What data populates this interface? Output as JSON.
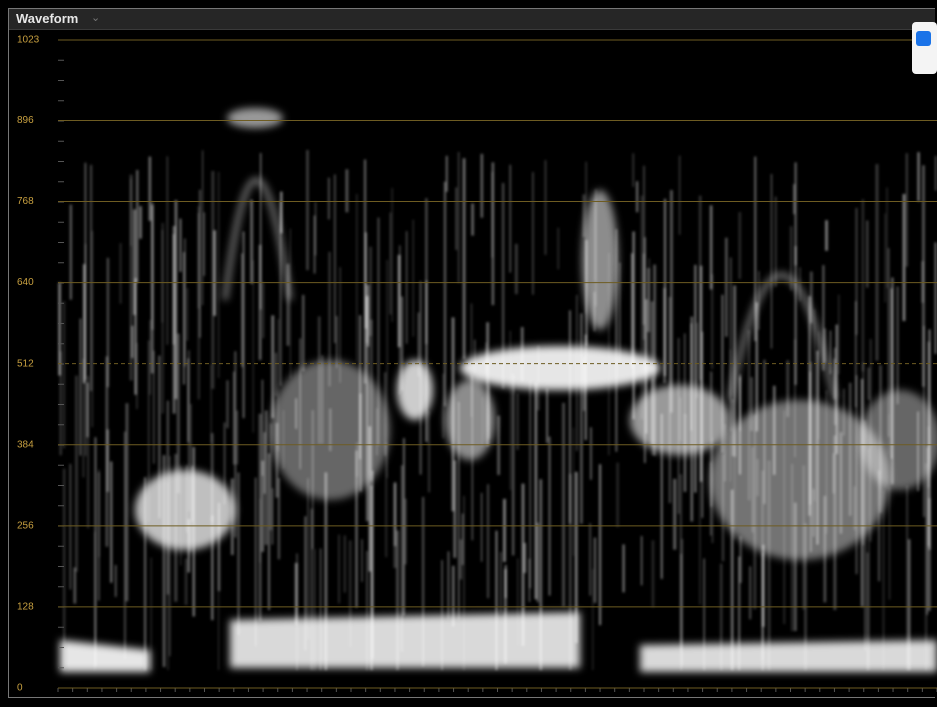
{
  "panel_title": "Waveform",
  "chart_data": {
    "type": "waveform",
    "ylim": [
      0,
      1023
    ],
    "yticks": [
      0,
      128,
      256,
      384,
      512,
      640,
      768,
      896,
      1023
    ],
    "grid": true,
    "grid_color": "#6e5c22"
  }
}
